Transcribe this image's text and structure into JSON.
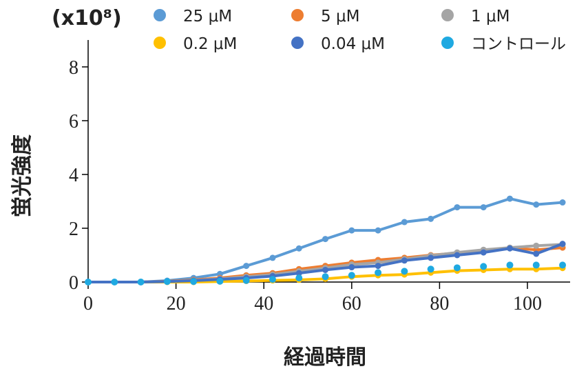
{
  "chart_data": {
    "type": "line",
    "multiplier_label": "(x10⁸)",
    "xlabel": "経過時間",
    "ylabel": "蛍光強度",
    "xlim": [
      0,
      110
    ],
    "ylim": [
      0,
      9
    ],
    "xticks": [
      0,
      20,
      40,
      60,
      80,
      100
    ],
    "yticks": [
      0,
      2,
      4,
      6,
      8
    ],
    "x": [
      0,
      6,
      12,
      18,
      24,
      30,
      36,
      42,
      48,
      54,
      60,
      66,
      72,
      78,
      84,
      90,
      96,
      102,
      108
    ],
    "series": [
      {
        "name": "25 μM",
        "color": "#5b9bd5",
        "line": true,
        "values": [
          0,
          0,
          0,
          0.05,
          0.15,
          0.3,
          0.6,
          0.9,
          1.25,
          1.6,
          1.92,
          1.92,
          2.23,
          2.35,
          2.78,
          2.78,
          3.1,
          2.88,
          2.96
        ]
      },
      {
        "name": "5 μM",
        "color": "#ed7d31",
        "line": true,
        "values": [
          0,
          0,
          0,
          0.03,
          0.08,
          0.15,
          0.25,
          0.33,
          0.48,
          0.6,
          0.72,
          0.82,
          0.9,
          1.0,
          1.08,
          1.17,
          1.27,
          1.2,
          1.28
        ]
      },
      {
        "name": "1 μM",
        "color": "#a5a5a5",
        "line": true,
        "values": [
          0,
          0,
          0,
          0.02,
          0.06,
          0.12,
          0.2,
          0.28,
          0.4,
          0.52,
          0.65,
          0.72,
          0.85,
          0.98,
          1.1,
          1.2,
          1.28,
          1.35,
          1.4
        ]
      },
      {
        "name": "0.2 μM",
        "color": "#ffc000",
        "line": true,
        "values": [
          0,
          0,
          0,
          0,
          0,
          0.02,
          0.04,
          0.06,
          0.08,
          0.12,
          0.2,
          0.25,
          0.28,
          0.35,
          0.42,
          0.45,
          0.48,
          0.48,
          0.52
        ]
      },
      {
        "name": "0.04 μM",
        "color": "#4472c4",
        "line": true,
        "values": [
          0,
          0,
          0,
          0.02,
          0.05,
          0.1,
          0.15,
          0.22,
          0.33,
          0.45,
          0.55,
          0.6,
          0.8,
          0.9,
          1.0,
          1.1,
          1.25,
          1.05,
          1.42
        ]
      },
      {
        "name": "コントロール",
        "color": "#1fa9e1",
        "line": false,
        "values": [
          0,
          0,
          0,
          0.02,
          0.02,
          0.03,
          0.06,
          0.1,
          0.15,
          0.2,
          0.25,
          0.35,
          0.4,
          0.48,
          0.53,
          0.58,
          0.63,
          0.63,
          0.63
        ]
      }
    ]
  }
}
